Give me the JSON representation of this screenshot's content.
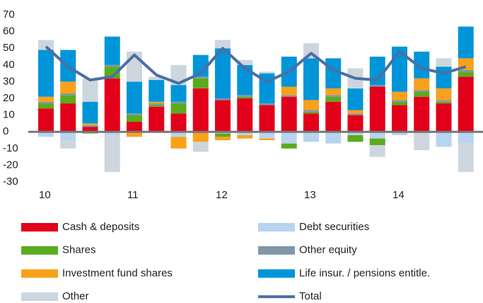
{
  "chart_data": {
    "type": "bar",
    "stacked": true,
    "categories": [
      "10",
      null,
      null,
      null,
      "11",
      null,
      null,
      null,
      "12",
      null,
      null,
      null,
      "13",
      null,
      null,
      null,
      "14",
      null,
      null,
      null
    ],
    "series": [
      {
        "name": "Cash & deposits",
        "color": "#e2001a",
        "values": [
          14,
          17,
          3,
          32,
          6,
          15,
          11,
          26,
          19,
          20,
          16,
          21,
          11,
          18,
          10,
          27,
          16,
          21,
          17,
          33
        ]
      },
      {
        "name": "Debt securities",
        "color": "#b8d4f0",
        "values": [
          -3,
          -5,
          0,
          -2,
          0,
          0,
          -3,
          0,
          -1,
          -2,
          -4,
          -7,
          -6,
          -7,
          -2,
          -4,
          -2,
          0,
          -9,
          -7
        ]
      },
      {
        "name": "Shares",
        "color": "#5aab1e",
        "values": [
          3,
          5,
          -1,
          7,
          4,
          1,
          6,
          6,
          -2,
          1,
          0,
          -3,
          1,
          3,
          -4,
          -4,
          2,
          3,
          1,
          3
        ]
      },
      {
        "name": "Other equity",
        "color": "#7f96a8",
        "values": [
          1,
          1,
          1,
          1,
          1,
          1,
          1,
          1,
          1,
          1,
          1,
          1,
          1,
          1,
          1,
          1,
          1,
          1,
          1,
          1
        ]
      },
      {
        "name": "Investment fund shares",
        "color": "#f9a11b",
        "values": [
          3,
          7,
          1,
          0,
          -3,
          1,
          -7,
          -6,
          -2,
          -2,
          -1,
          5,
          6,
          4,
          2,
          0,
          5,
          7,
          7,
          7
        ]
      },
      {
        "name": "Life insur. / pensions entitle.",
        "color": "#0095d9",
        "values": [
          28,
          19,
          13,
          17,
          19,
          13,
          10,
          13,
          30,
          18,
          18,
          18,
          25,
          18,
          13,
          17,
          27,
          16,
          13,
          19
        ]
      },
      {
        "name": "Other",
        "color": "#cdd6de",
        "values": [
          6,
          -5,
          14,
          -22,
          18,
          2,
          12,
          -6,
          5,
          3,
          1,
          0,
          9,
          0,
          12,
          -7,
          0,
          -11,
          5,
          -17
        ]
      },
      {
        "name": "Total",
        "color": "#4a6fa5",
        "type": "line",
        "values": [
          51,
          39,
          31,
          33,
          46,
          34,
          29,
          35,
          50,
          38,
          30,
          36,
          47,
          37,
          32,
          31,
          48,
          38,
          35,
          39
        ]
      }
    ],
    "ylim": [
      -30,
      70
    ],
    "yticks": [
      -30,
      -20,
      -10,
      0,
      10,
      20,
      30,
      40,
      50,
      60,
      70
    ],
    "grid": false
  }
}
